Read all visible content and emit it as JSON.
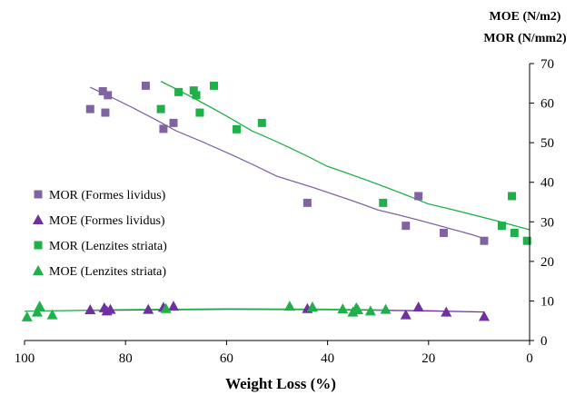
{
  "chart_data": {
    "type": "scatter",
    "title": "",
    "xlabel": "Weight Loss (%)",
    "ylabel_lines": [
      "MOE (N/m2)",
      "MOR (N/mm2)"
    ],
    "xlim": [
      100,
      0
    ],
    "ylim": [
      0,
      70
    ],
    "x_ticks": [
      100,
      80,
      60,
      40,
      20,
      0
    ],
    "y_ticks": [
      0,
      10,
      20,
      30,
      40,
      50,
      60,
      70
    ],
    "x_axis_reversed": true,
    "y_axis_side": "right",
    "grid": false,
    "legend_position": "center-left",
    "series": [
      {
        "name": "MOR (Formes lividus)",
        "marker": "square",
        "color": "#8064a2",
        "points": [
          [
            87,
            58.5
          ],
          [
            84.5,
            63
          ],
          [
            84,
            57.6
          ],
          [
            83.5,
            62
          ],
          [
            76,
            64.4
          ],
          [
            72.5,
            53.5
          ],
          [
            70.5,
            55
          ],
          [
            44,
            34.8
          ],
          [
            22,
            36.5
          ],
          [
            24.5,
            29
          ],
          [
            17,
            27.2
          ],
          [
            9,
            25.2
          ]
        ],
        "trend": [
          [
            87,
            64
          ],
          [
            70,
            53
          ],
          [
            50,
            41.5
          ],
          [
            30,
            33
          ],
          [
            15,
            28
          ],
          [
            9,
            25.8
          ]
        ]
      },
      {
        "name": "MOE (Formes lividus)",
        "marker": "triangle",
        "color": "#7030a0",
        "points": [
          [
            87,
            7.8
          ],
          [
            84.2,
            8.3
          ],
          [
            83.7,
            7.5
          ],
          [
            83,
            7.9
          ],
          [
            75.5,
            7.9
          ],
          [
            72.5,
            8.4
          ],
          [
            70.5,
            8.7
          ],
          [
            44,
            8.1
          ],
          [
            22,
            8.5
          ],
          [
            24.5,
            6.5
          ],
          [
            16.5,
            7.2
          ],
          [
            9,
            6.1
          ]
        ],
        "trend": [
          [
            87,
            7.6
          ],
          [
            60,
            7.9
          ],
          [
            40,
            7.8
          ],
          [
            20,
            7.5
          ],
          [
            9,
            7.2
          ]
        ]
      },
      {
        "name": "MOR (Lenzites striata)",
        "marker": "square",
        "color": "#1fb04a",
        "points": [
          [
            73,
            58.5
          ],
          [
            69.5,
            62.8
          ],
          [
            66.5,
            63.2
          ],
          [
            66,
            62
          ],
          [
            65.3,
            57.6
          ],
          [
            62.5,
            64.4
          ],
          [
            58,
            53.4
          ],
          [
            53,
            55
          ],
          [
            29,
            34.8
          ],
          [
            5.5,
            29
          ],
          [
            3.5,
            36.5
          ],
          [
            3,
            27.2
          ],
          [
            0.5,
            25.2
          ]
        ],
        "trend": [
          [
            73,
            65.5
          ],
          [
            55,
            53
          ],
          [
            40,
            44
          ],
          [
            20,
            34.5
          ],
          [
            0,
            28
          ]
        ]
      },
      {
        "name": "MOE (Lenzites striata)",
        "marker": "triangle",
        "color": "#1fb04a",
        "points": [
          [
            99.5,
            6
          ],
          [
            97.5,
            7.2
          ],
          [
            97,
            8.7
          ],
          [
            94.5,
            6.5
          ],
          [
            72,
            8.1
          ],
          [
            47.5,
            8.7
          ],
          [
            43,
            8.5
          ],
          [
            37,
            8
          ],
          [
            35,
            7.2
          ],
          [
            34.3,
            8.3
          ],
          [
            34,
            7.8
          ],
          [
            31.5,
            7.5
          ],
          [
            28.5,
            7.9
          ]
        ],
        "trend": [
          [
            100,
            7.4
          ],
          [
            80,
            7.8
          ],
          [
            60,
            8
          ],
          [
            40,
            7.9
          ],
          [
            28,
            7.7
          ]
        ]
      }
    ]
  }
}
